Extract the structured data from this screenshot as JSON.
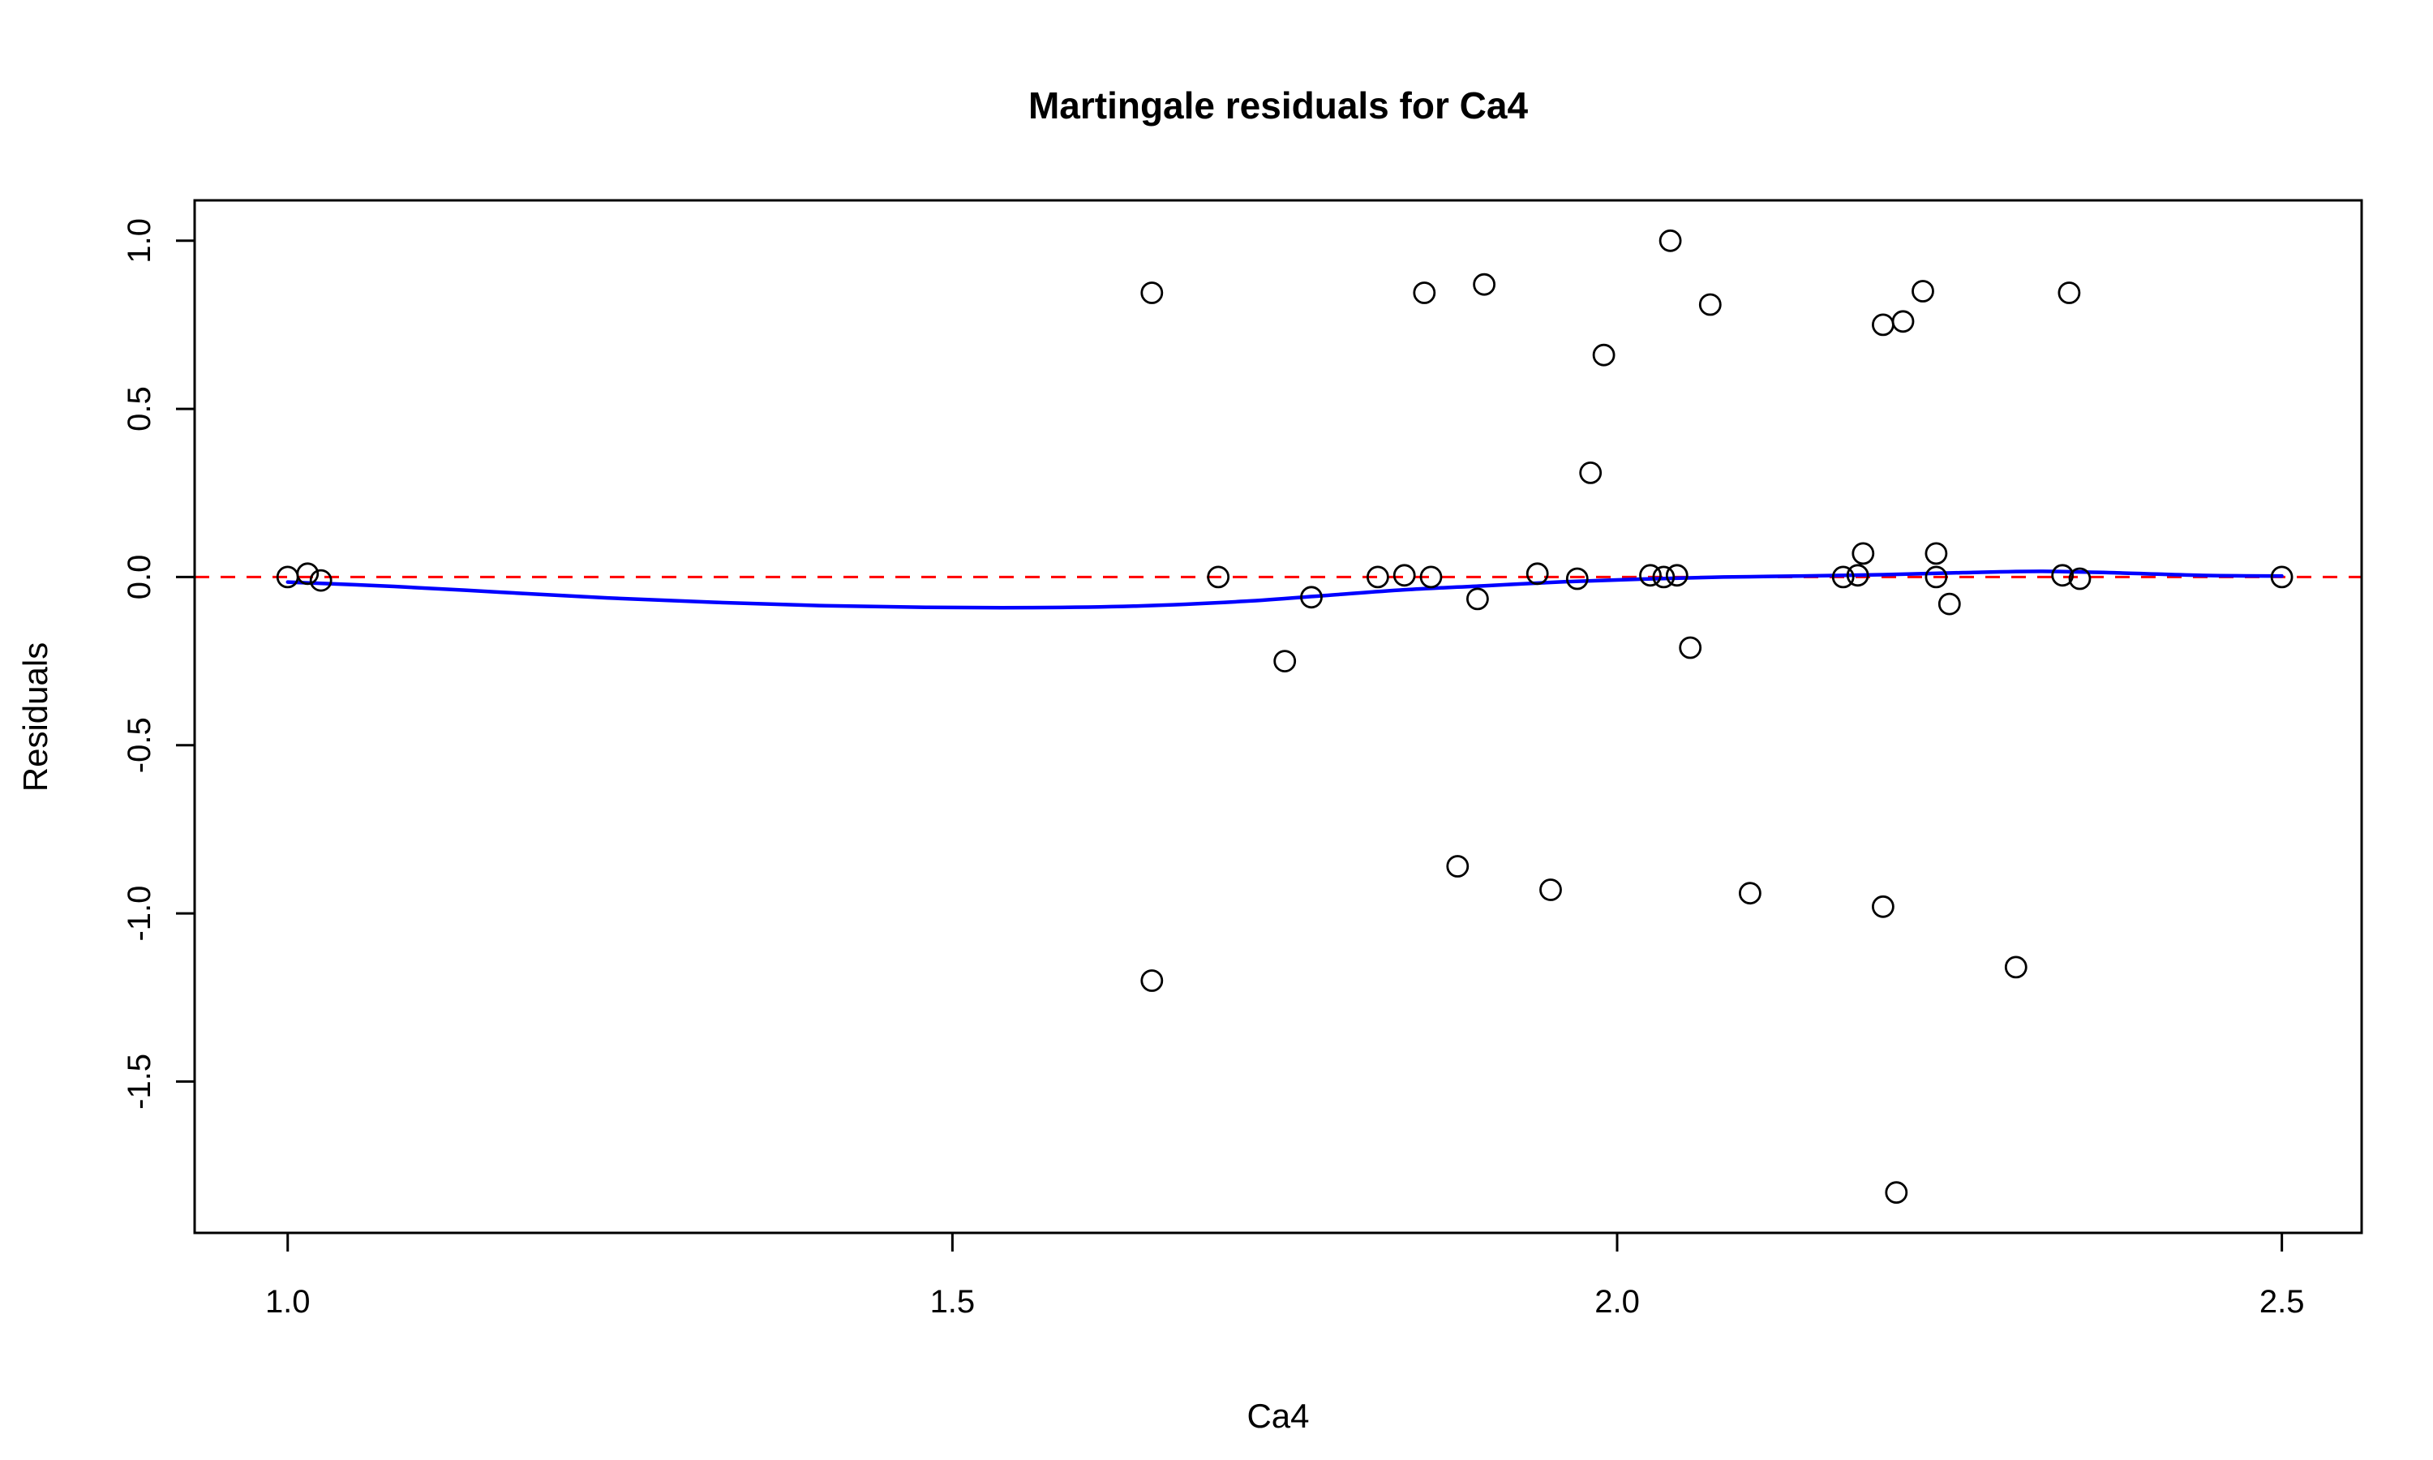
{
  "chart_data": {
    "type": "scatter",
    "title": "Martingale residuals for Ca4",
    "xlabel": "Ca4",
    "ylabel": "Residuals",
    "xlim": [
      0.93,
      2.56
    ],
    "ylim": [
      -1.95,
      1.12
    ],
    "xticks": [
      1.0,
      1.5,
      2.0,
      2.5
    ],
    "xtick_labels": [
      "1.0",
      "1.5",
      "2.0",
      "2.5"
    ],
    "yticks": [
      1.0,
      0.5,
      0.0,
      -0.5,
      -1.0,
      -1.5
    ],
    "ytick_labels": [
      "1.0",
      "0.5",
      "0.0",
      "-0.5",
      "-1.0",
      "-1.5"
    ],
    "grid": false,
    "legend": null,
    "colors": {
      "points": "#000000",
      "smooth_line": "#0000FF",
      "reference_line": "#FF0000",
      "axes": "#000000"
    },
    "series": [
      {
        "name": "martingale-residuals",
        "kind": "scatter",
        "marker": "open-circle",
        "color": "#000000",
        "points": [
          [
            1.0,
            0.0
          ],
          [
            1.015,
            0.01
          ],
          [
            1.025,
            -0.01
          ],
          [
            1.65,
            0.845
          ],
          [
            1.65,
            -1.2
          ],
          [
            1.7,
            0.0
          ],
          [
            1.75,
            -0.25
          ],
          [
            1.77,
            -0.06
          ],
          [
            1.82,
            0.0
          ],
          [
            1.84,
            0.005
          ],
          [
            1.855,
            0.845
          ],
          [
            1.86,
            0.0
          ],
          [
            1.88,
            -0.86
          ],
          [
            1.895,
            -0.065
          ],
          [
            1.9,
            0.87
          ],
          [
            1.94,
            0.01
          ],
          [
            1.95,
            -0.93
          ],
          [
            1.97,
            -0.005
          ],
          [
            1.98,
            0.31
          ],
          [
            1.99,
            0.66
          ],
          [
            2.025,
            0.005
          ],
          [
            2.035,
            0.0
          ],
          [
            2.045,
            0.005
          ],
          [
            2.04,
            1.0
          ],
          [
            2.055,
            -0.21
          ],
          [
            2.07,
            0.81
          ],
          [
            2.1,
            -0.94
          ],
          [
            2.17,
            0.0
          ],
          [
            2.181,
            0.005
          ],
          [
            2.185,
            0.07
          ],
          [
            2.2,
            0.75
          ],
          [
            2.2,
            -0.98
          ],
          [
            2.215,
            0.76
          ],
          [
            2.21,
            -1.83
          ],
          [
            2.23,
            0.85
          ],
          [
            2.24,
            0.07
          ],
          [
            2.24,
            0.0
          ],
          [
            2.25,
            -0.08
          ],
          [
            2.3,
            -1.16
          ],
          [
            2.335,
            0.005
          ],
          [
            2.348,
            -0.005
          ],
          [
            2.34,
            0.845
          ],
          [
            2.5,
            0.0
          ]
        ]
      },
      {
        "name": "lowess-smooth",
        "kind": "line",
        "color": "#0000FF",
        "points": [
          [
            1.0,
            -0.015
          ],
          [
            1.08,
            -0.028
          ],
          [
            1.16,
            -0.045
          ],
          [
            1.24,
            -0.062
          ],
          [
            1.32,
            -0.075
          ],
          [
            1.4,
            -0.085
          ],
          [
            1.48,
            -0.09
          ],
          [
            1.56,
            -0.091
          ],
          [
            1.64,
            -0.086
          ],
          [
            1.72,
            -0.072
          ],
          [
            1.78,
            -0.055
          ],
          [
            1.84,
            -0.038
          ],
          [
            1.9,
            -0.026
          ],
          [
            1.96,
            -0.014
          ],
          [
            2.02,
            -0.006
          ],
          [
            2.08,
            0.0
          ],
          [
            2.14,
            0.003
          ],
          [
            2.2,
            0.007
          ],
          [
            2.26,
            0.013
          ],
          [
            2.32,
            0.017
          ],
          [
            2.38,
            0.012
          ],
          [
            2.44,
            0.005
          ],
          [
            2.5,
            0.003
          ]
        ]
      },
      {
        "name": "zero-reference",
        "kind": "hline",
        "y": 0.0,
        "color": "#FF0000",
        "style": "dashed"
      }
    ]
  }
}
